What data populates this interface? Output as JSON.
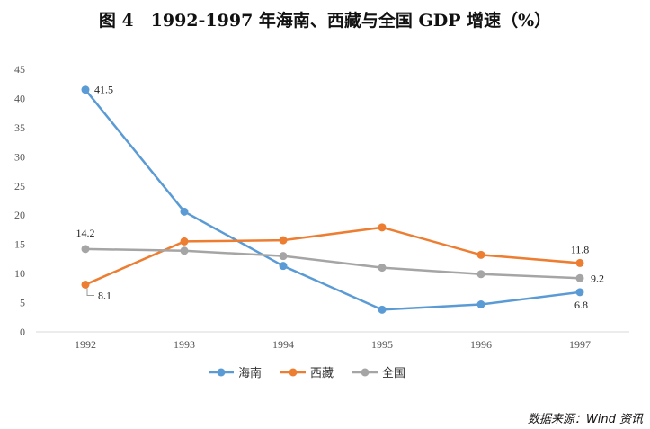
{
  "title": "图 4　1992-1997 年海南、西藏与全国 GDP 增速（%）",
  "source": "数据来源：Wind 资讯",
  "chart_data": {
    "type": "line",
    "title": "图 4　1992-1997 年海南、西藏与全国 GDP 增速（%）",
    "xlabel": "",
    "ylabel": "",
    "ylim": [
      0,
      45
    ],
    "yticks": [
      0,
      5,
      10,
      15,
      20,
      25,
      30,
      35,
      40,
      45
    ],
    "grid": false,
    "legend_position": "bottom",
    "categories": [
      "1992",
      "1993",
      "1994",
      "1995",
      "1996",
      "1997"
    ],
    "series": [
      {
        "name": "海南",
        "color": "#5b9bd5",
        "values": [
          41.5,
          20.6,
          11.3,
          3.8,
          4.7,
          6.8
        ]
      },
      {
        "name": "西藏",
        "color": "#ed7d31",
        "values": [
          8.1,
          15.5,
          15.7,
          17.9,
          13.2,
          11.8
        ]
      },
      {
        "name": "全国",
        "color": "#a5a5a5",
        "values": [
          14.2,
          13.9,
          13.0,
          11.0,
          9.9,
          9.2
        ]
      }
    ],
    "annotations": [
      {
        "series": 0,
        "index": 0,
        "text": "41.5"
      },
      {
        "series": 1,
        "index": 0,
        "text": "8.1"
      },
      {
        "series": 2,
        "index": 0,
        "text": "14.2"
      },
      {
        "series": 1,
        "index": 5,
        "text": "11.8"
      },
      {
        "series": 2,
        "index": 5,
        "text": "9.2"
      },
      {
        "series": 0,
        "index": 5,
        "text": "6.8"
      }
    ]
  }
}
